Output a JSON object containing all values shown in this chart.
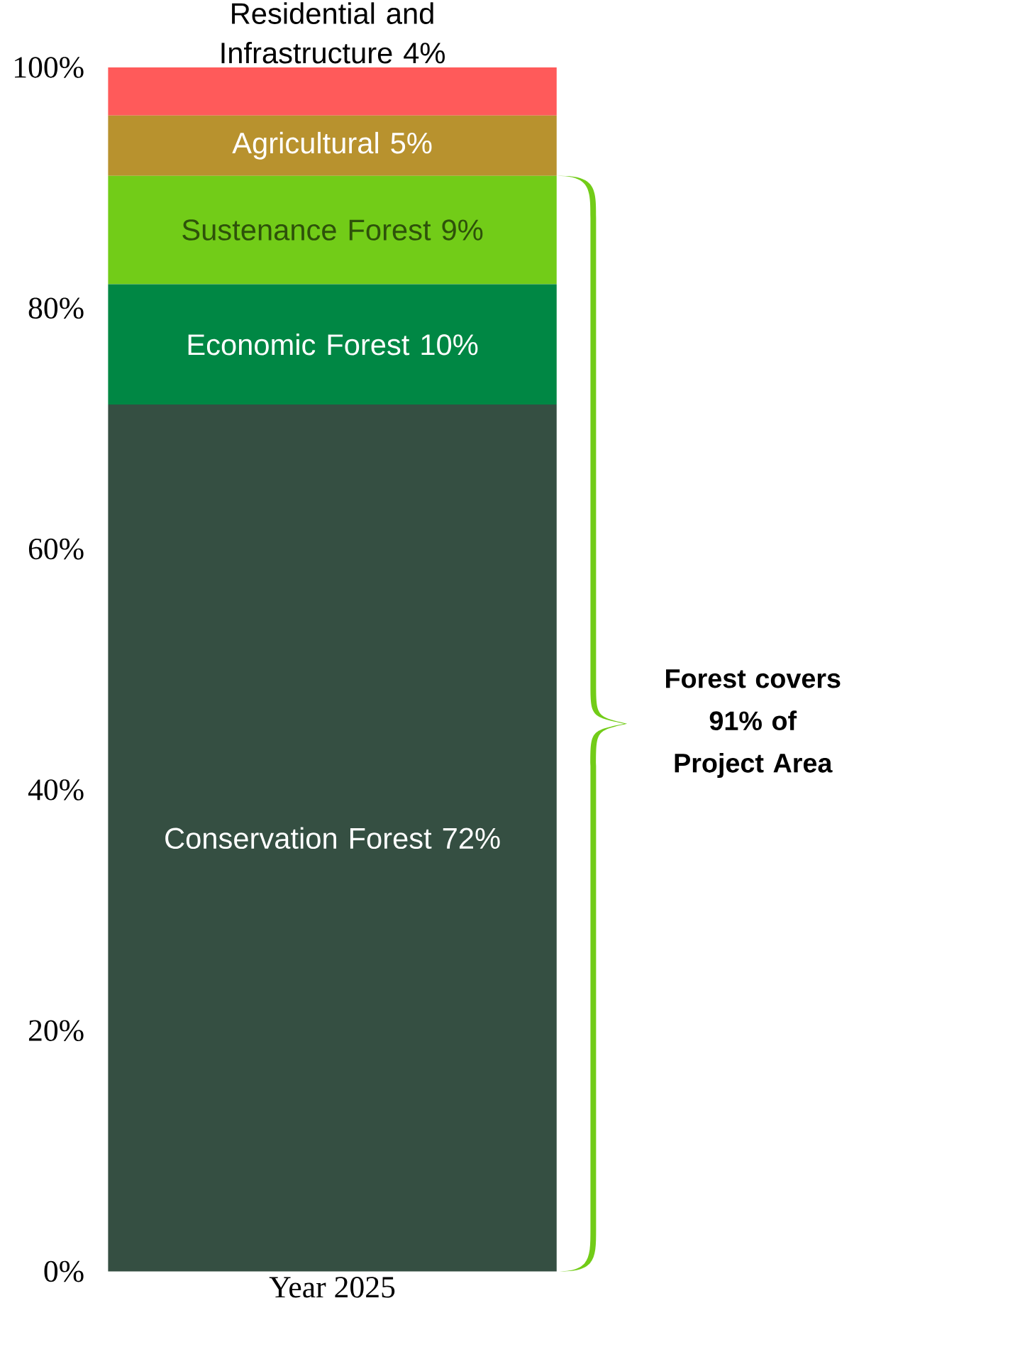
{
  "chart_data": {
    "type": "bar",
    "stacked": true,
    "categories": [
      "Year 2025"
    ],
    "series": [
      {
        "name": "Conservation Forest",
        "color": "#354f42",
        "values": [
          72
        ],
        "value_labels": [
          "72%"
        ]
      },
      {
        "name": "Economic Forest",
        "color": "#008744",
        "values": [
          10
        ],
        "value_labels": [
          "10%"
        ]
      },
      {
        "name": "Sustenance Forest",
        "color": "#72cc18",
        "values": [
          9
        ],
        "value_labels": [
          "9%"
        ]
      },
      {
        "name": "Agricultural",
        "color": "#b8922e",
        "values": [
          5
        ],
        "value_labels": [
          "5%"
        ]
      },
      {
        "name": "Residential and Infrastructure",
        "color": "#ff5a5a",
        "values": [
          4
        ],
        "value_labels": [
          "4%"
        ]
      }
    ],
    "ylim": [
      0,
      100
    ],
    "yticks": [
      {
        "value": 0,
        "label": "0%"
      },
      {
        "value": 20,
        "label": "20%"
      },
      {
        "value": 40,
        "label": "40%"
      },
      {
        "value": 60,
        "label": "60%"
      },
      {
        "value": 80,
        "label": "80%"
      },
      {
        "value": 100,
        "label": "100%"
      }
    ],
    "annotations": [
      "Forest covers 91% of Project Area"
    ]
  }
}
